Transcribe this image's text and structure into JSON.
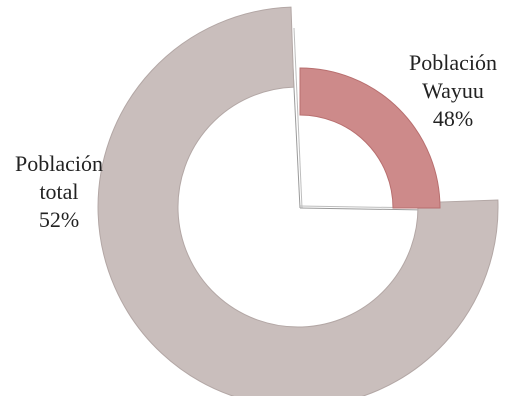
{
  "chart_data": {
    "type": "pie",
    "style": "exploded-donut",
    "slices": [
      {
        "name_line1": "Población",
        "name_line2": "Wayuu",
        "percent_label": "48%",
        "value": 48,
        "color": "#cd8a8a"
      },
      {
        "name_line1": "Población",
        "name_line2": "total",
        "percent_label": "52%",
        "value": 52,
        "color": "#c9bebc"
      }
    ],
    "legend": "none"
  }
}
